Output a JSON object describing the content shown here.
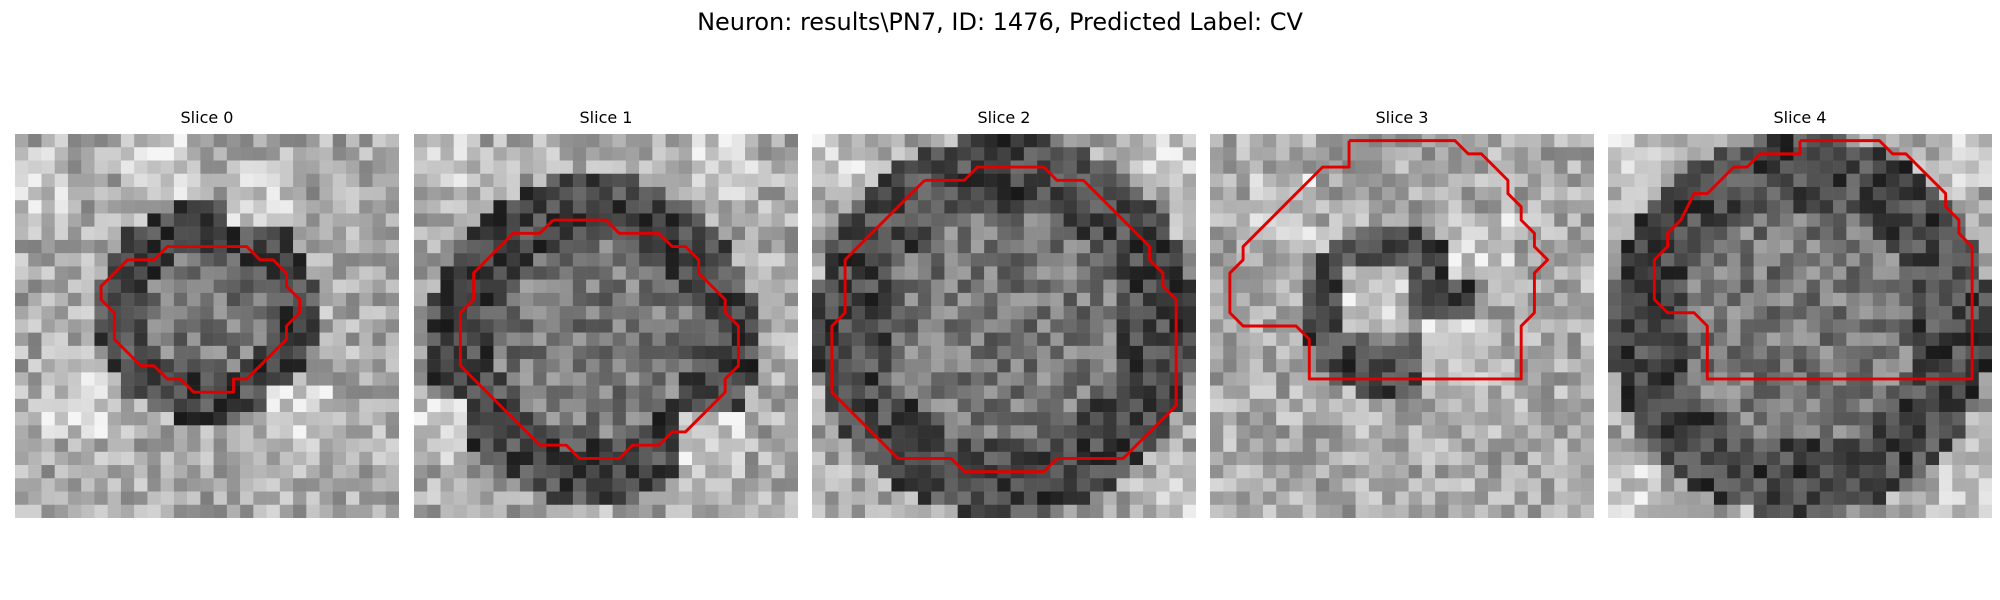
{
  "figure": {
    "title": "Neuron: results\\PN7, ID: 1476, Predicted Label: CV"
  },
  "contour_color": "#e00000",
  "panels": [
    {
      "title": "Slice 0",
      "contour": [
        [
          13,
          8
        ],
        [
          17,
          8
        ],
        [
          18,
          9
        ],
        [
          19,
          9
        ],
        [
          20,
          10
        ],
        [
          20,
          11
        ],
        [
          21,
          12
        ],
        [
          21,
          13
        ],
        [
          20,
          14
        ],
        [
          20,
          15
        ],
        [
          19,
          16
        ],
        [
          18,
          17
        ],
        [
          17,
          18
        ],
        [
          16,
          18
        ],
        [
          16,
          19
        ],
        [
          13,
          19
        ],
        [
          12,
          18
        ],
        [
          11,
          18
        ],
        [
          10,
          17
        ],
        [
          9,
          17
        ],
        [
          8,
          16
        ],
        [
          7,
          15
        ],
        [
          7,
          13
        ],
        [
          6,
          12
        ],
        [
          6,
          11
        ],
        [
          7,
          10
        ],
        [
          8,
          9
        ],
        [
          10,
          9
        ],
        [
          11,
          8
        ]
      ],
      "dark_center": [
        14,
        13
      ],
      "dark_radius": 6,
      "light_spots": [
        [
          1,
          3
        ],
        [
          10,
          2
        ],
        [
          18,
          4
        ],
        [
          4,
          20
        ],
        [
          21,
          21
        ]
      ]
    },
    {
      "title": "Slice 1",
      "contour": [
        [
          10,
          6
        ],
        [
          14,
          6
        ],
        [
          15,
          7
        ],
        [
          18,
          7
        ],
        [
          19,
          8
        ],
        [
          20,
          8
        ],
        [
          21,
          9
        ],
        [
          21,
          10
        ],
        [
          22,
          11
        ],
        [
          23,
          12
        ],
        [
          23,
          13
        ],
        [
          24,
          14
        ],
        [
          24,
          17
        ],
        [
          23,
          18
        ],
        [
          23,
          19
        ],
        [
          22,
          20
        ],
        [
          21,
          21
        ],
        [
          20,
          22
        ],
        [
          19,
          22
        ],
        [
          18,
          23
        ],
        [
          16,
          23
        ],
        [
          15,
          24
        ],
        [
          12,
          24
        ],
        [
          11,
          23
        ],
        [
          9,
          23
        ],
        [
          8,
          22
        ],
        [
          7,
          21
        ],
        [
          6,
          20
        ],
        [
          5,
          19
        ],
        [
          4,
          18
        ],
        [
          3,
          17
        ],
        [
          3,
          13
        ],
        [
          4,
          12
        ],
        [
          4,
          10
        ],
        [
          5,
          9
        ],
        [
          6,
          8
        ],
        [
          7,
          7
        ],
        [
          9,
          7
        ]
      ],
      "dark_center": [
        13,
        15
      ],
      "dark_radius": 10,
      "light_spots": [
        [
          1,
          1
        ],
        [
          23,
          2
        ],
        [
          1,
          22
        ],
        [
          22,
          23
        ]
      ]
    },
    {
      "title": "Slice 2",
      "contour": [
        [
          8,
          3
        ],
        [
          11,
          3
        ],
        [
          12,
          2
        ],
        [
          17,
          2
        ],
        [
          18,
          3
        ],
        [
          20,
          3
        ],
        [
          21,
          4
        ],
        [
          22,
          5
        ],
        [
          23,
          6
        ],
        [
          24,
          7
        ],
        [
          25,
          8
        ],
        [
          25,
          9
        ],
        [
          26,
          10
        ],
        [
          26,
          11
        ],
        [
          27,
          12
        ],
        [
          27,
          20
        ],
        [
          26,
          21
        ],
        [
          25,
          22
        ],
        [
          24,
          23
        ],
        [
          23,
          24
        ],
        [
          18,
          24
        ],
        [
          17,
          25
        ],
        [
          11,
          25
        ],
        [
          10,
          24
        ],
        [
          6,
          24
        ],
        [
          5,
          23
        ],
        [
          4,
          22
        ],
        [
          3,
          21
        ],
        [
          2,
          20
        ],
        [
          1,
          19
        ],
        [
          1,
          14
        ],
        [
          2,
          13
        ],
        [
          2,
          9
        ],
        [
          3,
          8
        ],
        [
          4,
          7
        ],
        [
          5,
          6
        ],
        [
          6,
          5
        ],
        [
          7,
          4
        ]
      ],
      "dark_center": [
        14,
        14
      ],
      "dark_radius": 12,
      "light_spots": [
        [
          1,
          1
        ],
        [
          27,
          1
        ],
        [
          28,
          27
        ]
      ]
    },
    {
      "title": "Slice 3",
      "contour": [
        [
          10,
          0
        ],
        [
          18,
          0
        ],
        [
          19,
          1
        ],
        [
          20,
          1
        ],
        [
          21,
          2
        ],
        [
          22,
          3
        ],
        [
          22,
          4
        ],
        [
          23,
          5
        ],
        [
          23,
          6
        ],
        [
          24,
          7
        ],
        [
          24,
          8
        ],
        [
          25,
          9
        ],
        [
          24,
          10
        ],
        [
          24,
          13
        ],
        [
          23,
          14
        ],
        [
          23,
          18
        ],
        [
          7,
          18
        ],
        [
          7,
          15
        ],
        [
          6,
          14
        ],
        [
          2,
          14
        ],
        [
          1,
          13
        ],
        [
          1,
          10
        ],
        [
          2,
          9
        ],
        [
          2,
          8
        ],
        [
          3,
          7
        ],
        [
          4,
          6
        ],
        [
          5,
          5
        ],
        [
          6,
          4
        ],
        [
          7,
          3
        ],
        [
          8,
          2
        ],
        [
          10,
          2
        ]
      ],
      "dark_center": [
        13,
        13
      ],
      "dark_radius": 4,
      "light_spots": [
        [
          5,
          5
        ],
        [
          20,
          8
        ],
        [
          12,
          12
        ],
        [
          18,
          16
        ]
      ]
    },
    {
      "title": "Slice 4",
      "contour": [
        [
          14,
          0
        ],
        [
          20,
          0
        ],
        [
          21,
          1
        ],
        [
          22,
          1
        ],
        [
          23,
          2
        ],
        [
          24,
          3
        ],
        [
          25,
          4
        ],
        [
          25,
          5
        ],
        [
          26,
          6
        ],
        [
          26,
          7
        ],
        [
          27,
          8
        ],
        [
          27,
          18
        ],
        [
          7,
          18
        ],
        [
          7,
          14
        ],
        [
          6,
          13
        ],
        [
          4,
          13
        ],
        [
          3,
          12
        ],
        [
          3,
          9
        ],
        [
          4,
          8
        ],
        [
          4,
          7
        ],
        [
          5,
          6
        ],
        [
          6,
          4
        ],
        [
          7,
          4
        ],
        [
          8,
          3
        ],
        [
          9,
          2
        ],
        [
          10,
          2
        ],
        [
          11,
          1
        ],
        [
          14,
          1
        ]
      ],
      "dark_center": [
        14,
        14
      ],
      "dark_radius": 12,
      "light_spots": [
        [
          1,
          1
        ],
        [
          27,
          1
        ],
        [
          1,
          27
        ],
        [
          27,
          27
        ]
      ]
    }
  ]
}
